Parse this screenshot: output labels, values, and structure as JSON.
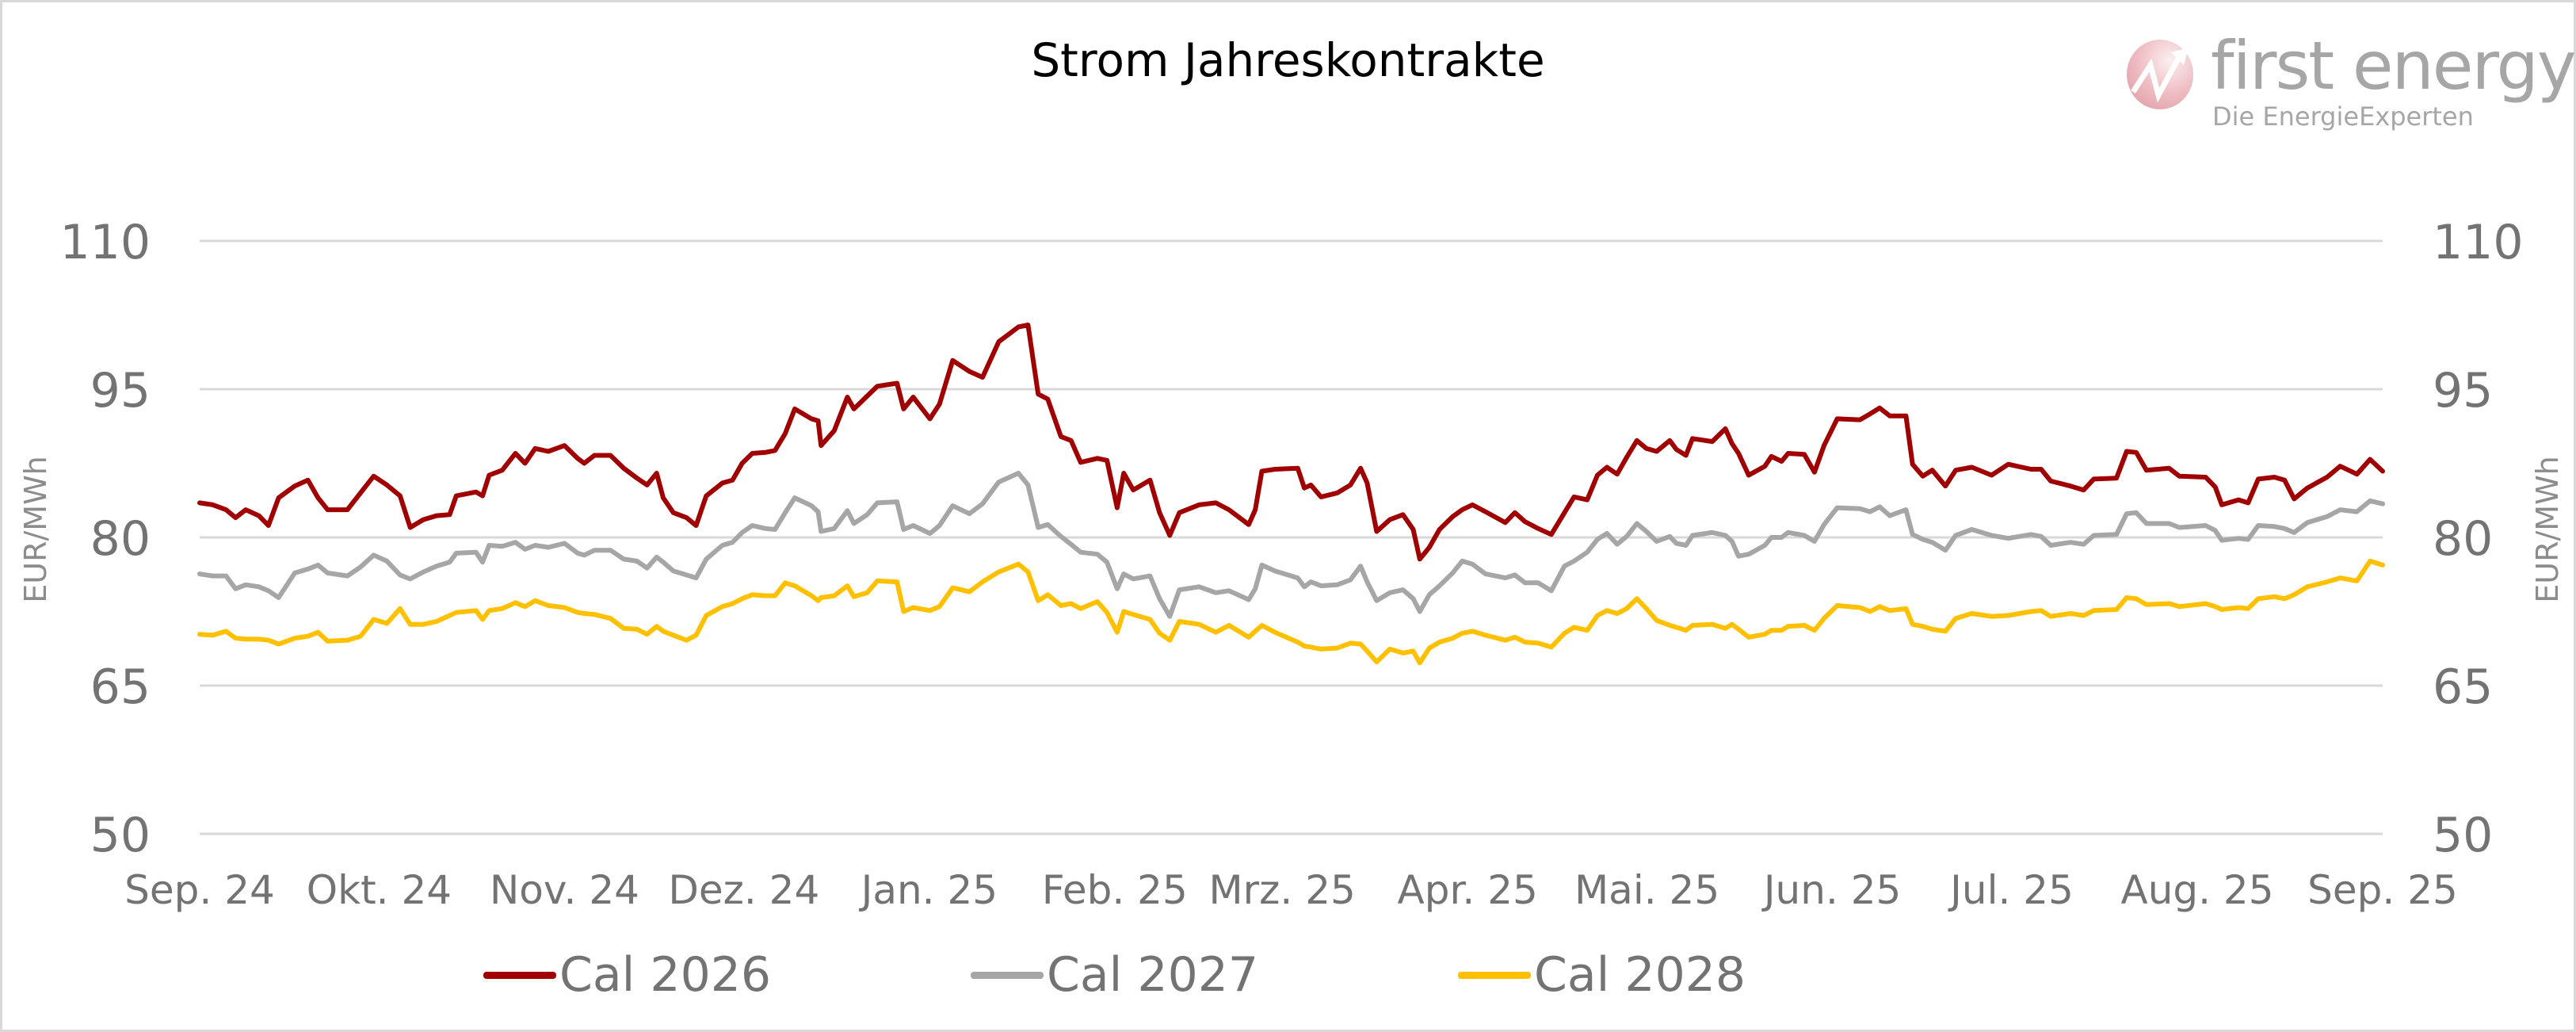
{
  "chart_data": {
    "type": "line",
    "title": "Strom Jahreskontrakte",
    "ylabel_left": "EUR/MWh",
    "ylabel_right": "EUR/MWh",
    "ylim": [
      50,
      110
    ],
    "yticks": [
      "110",
      "95",
      "80",
      "65",
      "50"
    ],
    "ytick_values": [
      110,
      95,
      80,
      65,
      50
    ],
    "xlim_days": [
      0,
      365
    ],
    "xtick_labels": [
      "Sep. 24",
      "Okt. 24",
      "Nov. 24",
      "Dez. 24",
      "Jan. 25",
      "Feb. 25",
      "Mrz. 25",
      "Apr. 25",
      "Mai. 25",
      "Jun. 25",
      "Jul. 25",
      "Aug. 25",
      "Sep. 25"
    ],
    "xtick_days": [
      0,
      30,
      61,
      91,
      122,
      153,
      181,
      212,
      242,
      273,
      303,
      334,
      365
    ],
    "grid": true,
    "legend_position": "bottom",
    "x_days": [
      0,
      2.2,
      4.4,
      6,
      7.7,
      9.9,
      11.5,
      13.2,
      15.9,
      18.1,
      19.8,
      21.4,
      24.7,
      26.9,
      29.1,
      31.3,
      33.5,
      35.2,
      37.4,
      39.6,
      41.8,
      42.9,
      46.2,
      47.3,
      48.4,
      50.6,
      52.8,
      54.4,
      56.1,
      58.3,
      61,
      63.2,
      64.3,
      66,
      68.7,
      70.9,
      73.1,
      74.8,
      76.4,
      77.5,
      79.2,
      81.4,
      83,
      84.7,
      87.4,
      89.1,
      90.7,
      92.4,
      94.6,
      96.2,
      97.9,
      99.5,
      102.3,
      103.4,
      103.9,
      106.1,
      108.3,
      109.4,
      111.6,
      113.3,
      116.6,
      117.7,
      119.3,
      122.1,
      123.7,
      125.9,
      128.7,
      130.9,
      133.6,
      136.9,
      138.5,
      140.2,
      141.8,
      144,
      145.7,
      147.3,
      150.1,
      151.7,
      153.4,
      154.5,
      156.1,
      158.9,
      160.5,
      162.2,
      163.8,
      167.1,
      169.9,
      172.1,
      175.4,
      176.5,
      177.6,
      179.8,
      183.6,
      184.7,
      185.8,
      187.5,
      190.2,
      192.4,
      194.1,
      195.2,
      196.8,
      199,
      201.2,
      202.9,
      204,
      205.6,
      207.3,
      209.5,
      211.1,
      212.8,
      215,
      218.3,
      219.9,
      221.6,
      223.8,
      226,
      228.2,
      229.8,
      232,
      233.7,
      235.3,
      237,
      238.6,
      240.3,
      241.9,
      243.6,
      245.8,
      246.9,
      248.5,
      249.6,
      252.9,
      255.1,
      256.2,
      257.3,
      259,
      261.7,
      262.8,
      264.5,
      265.6,
      268.3,
      270,
      271.6,
      273.8,
      277.6,
      279.3,
      280.9,
      282.6,
      285.3,
      286.4,
      288.1,
      289.7,
      291.9,
      293.6,
      296.3,
      299.6,
      302.4,
      306.2,
      307.9,
      309.5,
      312.8,
      315,
      316.7,
      320.5,
      322.2,
      323.8,
      325.5,
      329.3,
      331,
      335.4,
      337,
      338.1,
      340.9,
      342.5,
      344.2,
      346.9,
      348.6,
      350.2,
      352.4,
      355.7,
      357.9,
      360.7,
      362.9,
      365
    ],
    "series": [
      {
        "name": "Cal 2026",
        "color": "#a00000",
        "values": [
          83.5,
          83.3,
          82.8,
          82,
          82.8,
          82.2,
          81.2,
          84,
          85.2,
          85.8,
          84,
          82.8,
          82.8,
          84.5,
          86.2,
          85.3,
          84.2,
          81,
          81.8,
          82.2,
          82.3,
          84.2,
          84.6,
          84.2,
          86.3,
          86.8,
          88.5,
          87.5,
          89,
          88.7,
          89.3,
          88,
          87.5,
          88.3,
          88.3,
          87,
          86,
          85.3,
          86.5,
          84,
          82.5,
          82,
          81.2,
          84.2,
          85.5,
          85.8,
          87.5,
          88.5,
          88.6,
          88.8,
          90.5,
          93,
          92,
          91.8,
          89.3,
          90.8,
          94.2,
          93,
          94.3,
          95.3,
          95.6,
          93,
          94.2,
          92,
          93.5,
          97.9,
          96.8,
          96.2,
          99.8,
          101.3,
          101.5,
          94.5,
          94,
          90.2,
          89.8,
          87.6,
          88,
          87.8,
          83,
          86.5,
          84.8,
          85.8,
          82.5,
          80.2,
          82.5,
          83.3,
          83.5,
          82.8,
          81.3,
          82.8,
          86.7,
          86.9,
          87,
          85,
          85.3,
          84.1,
          84.5,
          85.3,
          87,
          85.5,
          80.6,
          81.8,
          82.3,
          80.8,
          77.8,
          79,
          80.8,
          82.1,
          82.8,
          83.3,
          82.6,
          81.5,
          82.5,
          81.6,
          80.9,
          80.3,
          82.5,
          84.1,
          83.8,
          86.3,
          87.1,
          86.4,
          88.1,
          89.8,
          89,
          88.7,
          89.8,
          88.9,
          88.3,
          90,
          89.7,
          91,
          89.5,
          88.5,
          86.3,
          87.2,
          88.2,
          87.7,
          88.5,
          88.4,
          86.6,
          89.3,
          92,
          91.9,
          92.5,
          93.1,
          92.3,
          92.3,
          87.4,
          86.2,
          86.8,
          85.2,
          86.8,
          87.1,
          86.3,
          87.4,
          86.9,
          86.9,
          85.7,
          85.2,
          84.8,
          85.9,
          86,
          88.7,
          88.6,
          86.8,
          87,
          86.2,
          86.1,
          85.1,
          83.3,
          83.8,
          83.5,
          85.9,
          86.1,
          85.8,
          83.9,
          85,
          86.1,
          87.2,
          86.4,
          87.9,
          86.7
        ]
      },
      {
        "name": "Cal 2027",
        "color": "#a6a6a6",
        "values": [
          76.3,
          76.1,
          76.1,
          74.8,
          75.2,
          75,
          74.6,
          73.9,
          76.4,
          76.8,
          77.2,
          76.4,
          76.1,
          77,
          78.2,
          77.6,
          76.2,
          75.8,
          76.5,
          77.1,
          77.5,
          78.4,
          78.5,
          77.5,
          79.2,
          79.1,
          79.5,
          78.8,
          79.2,
          79,
          79.4,
          78.4,
          78.2,
          78.7,
          78.7,
          77.8,
          77.6,
          76.9,
          78,
          77.5,
          76.6,
          76.2,
          75.9,
          77.8,
          79.2,
          79.5,
          80.5,
          81.2,
          80.9,
          80.8,
          82.5,
          84,
          83.2,
          82.6,
          80.6,
          80.9,
          82.7,
          81.4,
          82.3,
          83.5,
          83.6,
          80.8,
          81.2,
          80.4,
          81.2,
          83.2,
          82.4,
          83.4,
          85.6,
          86.5,
          85.3,
          81,
          81.3,
          80.1,
          79.3,
          78.5,
          78.3,
          77.5,
          74.8,
          76.3,
          75.8,
          76.1,
          73.8,
          72,
          74.7,
          75,
          74.4,
          74.6,
          73.7,
          74.8,
          77.2,
          76.6,
          75.9,
          75,
          75.5,
          75.1,
          75.2,
          75.7,
          77.1,
          75.5,
          73.6,
          74.4,
          74.7,
          73.8,
          72.5,
          74.2,
          75.1,
          76.4,
          77.6,
          77.3,
          76.3,
          75.9,
          76.2,
          75.4,
          75.4,
          74.6,
          77.1,
          77.6,
          78.5,
          79.8,
          80.4,
          79.3,
          80.1,
          81.4,
          80.6,
          79.6,
          80.1,
          79.4,
          79.2,
          80.2,
          80.5,
          80.2,
          79.6,
          78.1,
          78.3,
          79.2,
          80,
          80,
          80.5,
          80.2,
          79.6,
          81.3,
          83,
          82.9,
          82.6,
          83.1,
          82.2,
          82.8,
          80.3,
          79.8,
          79.5,
          78.7,
          80.2,
          80.8,
          80.2,
          79.9,
          80.3,
          80.1,
          79.2,
          79.5,
          79.3,
          80.2,
          80.3,
          82.4,
          82.5,
          81.4,
          81.4,
          81,
          81.2,
          80.7,
          79.7,
          79.9,
          79.8,
          81.2,
          81.1,
          80.9,
          80.5,
          81.5,
          82.1,
          82.8,
          82.6,
          83.7,
          83.4
        ]
      },
      {
        "name": "Cal 2028",
        "color": "#ffc000",
        "values": [
          70.2,
          70.1,
          70.5,
          69.8,
          69.7,
          69.7,
          69.6,
          69.2,
          69.8,
          70,
          70.4,
          69.5,
          69.6,
          70,
          71.7,
          71.3,
          72.8,
          71.2,
          71.2,
          71.5,
          72.1,
          72.4,
          72.6,
          71.7,
          72.6,
          72.8,
          73.4,
          73,
          73.6,
          73.1,
          72.9,
          72.4,
          72.3,
          72.2,
          71.8,
          70.8,
          70.7,
          70.2,
          71,
          70.5,
          70.1,
          69.6,
          70.1,
          72.1,
          73,
          73.3,
          73.8,
          74.2,
          74.1,
          74.1,
          75.4,
          75.1,
          74.1,
          73.6,
          73.9,
          74.1,
          75.1,
          74,
          74.4,
          75.6,
          75.5,
          72.5,
          72.9,
          72.6,
          73,
          74.9,
          74.5,
          75.5,
          76.5,
          77.3,
          76.5,
          73.6,
          74.2,
          73.1,
          73.3,
          72.8,
          73.5,
          72.4,
          70.4,
          72.5,
          72.2,
          71.7,
          70.3,
          69.6,
          71.5,
          71.2,
          70.4,
          71.1,
          69.9,
          70.5,
          71.1,
          70.4,
          69.4,
          69,
          68.9,
          68.7,
          68.8,
          69.3,
          69.2,
          68.5,
          67.4,
          68.7,
          68.3,
          68.5,
          67.3,
          68.8,
          69.4,
          69.8,
          70.3,
          70.5,
          70.1,
          69.6,
          69.9,
          69.4,
          69.3,
          68.9,
          70.3,
          70.9,
          70.6,
          72.1,
          72.6,
          72.3,
          72.8,
          73.8,
          72.8,
          71.6,
          71.1,
          70.9,
          70.6,
          71.1,
          71.2,
          70.8,
          71.2,
          70.7,
          69.9,
          70.2,
          70.6,
          70.6,
          71,
          71.1,
          70.6,
          71.8,
          73.1,
          72.9,
          72.5,
          73,
          72.6,
          72.8,
          71.2,
          71,
          70.7,
          70.5,
          71.8,
          72.3,
          72,
          72.1,
          72.5,
          72.6,
          72,
          72.3,
          72.1,
          72.6,
          72.7,
          73.9,
          73.8,
          73.2,
          73.3,
          73,
          73.3,
          73,
          72.7,
          72.9,
          72.8,
          73.8,
          74,
          73.8,
          74.2,
          75,
          75.5,
          75.9,
          75.6,
          77.6,
          77.2
        ]
      }
    ]
  },
  "logo": {
    "brand": "first energy",
    "tagline": "Die EnergieExperten",
    "icon": "rising-arrow-ball-icon"
  },
  "gridline_color": "#d9d9d9",
  "tick_color": "#737373"
}
